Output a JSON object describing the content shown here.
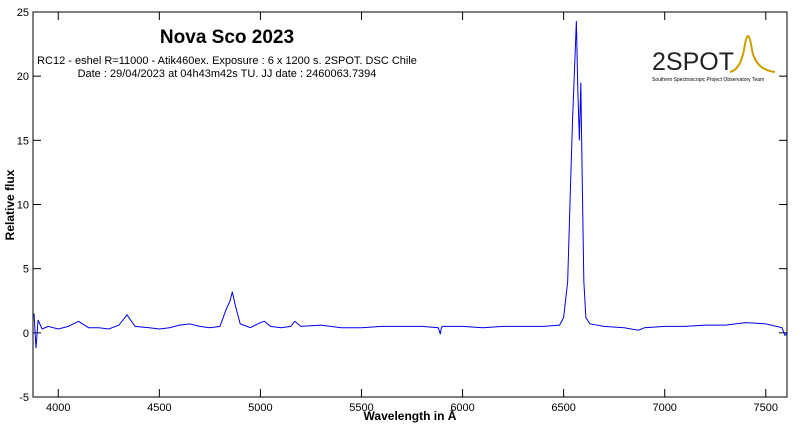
{
  "chart_data": {
    "type": "line",
    "title": "Nova Sco 2023",
    "subtitle": [
      "RC12 - eshel R=11000 - Atik460ex. Exposure : 6 x 1200 s. 2SPOT. DSC Chile",
      "Date : 29/04/2023 at 04h43m42s TU. JJ date : 2460063.7394"
    ],
    "xlabel": "Wavelength in Å",
    "ylabel": "Relative flux",
    "logo": {
      "name": "2SPOT",
      "caption": "Southern Spectroscopic Project Observatory Team"
    },
    "x": [
      3880,
      3890,
      3900,
      3920,
      3950,
      4000,
      4050,
      4100,
      4150,
      4200,
      4250,
      4300,
      4340,
      4380,
      4450,
      4500,
      4550,
      4600,
      4650,
      4700,
      4750,
      4800,
      4830,
      4850,
      4861,
      4875,
      4900,
      4950,
      5000,
      5020,
      5050,
      5100,
      5150,
      5170,
      5200,
      5300,
      5400,
      5500,
      5600,
      5700,
      5800,
      5880,
      5890,
      5895,
      5900,
      6000,
      6100,
      6200,
      6300,
      6400,
      6480,
      6500,
      6520,
      6535,
      6545,
      6555,
      6563,
      6570,
      6578,
      6585,
      6592,
      6600,
      6610,
      6630,
      6700,
      6800,
      6870,
      6900,
      7000,
      7100,
      7200,
      7300,
      7400,
      7500,
      7580,
      7595,
      7605
    ],
    "series": [
      {
        "name": "Nova Sco 2023",
        "color": "#0000ee",
        "values": [
          1.5,
          -1.2,
          1.0,
          0.3,
          0.5,
          0.3,
          0.5,
          0.9,
          0.4,
          0.4,
          0.3,
          0.6,
          1.4,
          0.5,
          0.4,
          0.3,
          0.4,
          0.6,
          0.7,
          0.5,
          0.4,
          0.5,
          1.8,
          2.5,
          3.2,
          2.2,
          0.7,
          0.4,
          0.8,
          0.9,
          0.5,
          0.4,
          0.5,
          0.9,
          0.5,
          0.6,
          0.4,
          0.4,
          0.5,
          0.5,
          0.5,
          0.4,
          -0.1,
          0.4,
          0.5,
          0.5,
          0.4,
          0.5,
          0.5,
          0.5,
          0.6,
          1.2,
          4,
          12,
          17,
          21,
          24.3,
          19,
          15,
          19.5,
          12,
          4,
          1.2,
          0.7,
          0.5,
          0.4,
          0.2,
          0.4,
          0.5,
          0.5,
          0.6,
          0.6,
          0.8,
          0.7,
          0.4,
          -0.2,
          0
        ]
      }
    ],
    "xlim": [
      3875,
      7605
    ],
    "ylim": [
      -5,
      25
    ],
    "xticks": [
      4000,
      4500,
      5000,
      5500,
      6000,
      6500,
      7000,
      7500
    ],
    "yticks": [
      -5,
      0,
      5,
      10,
      15,
      20,
      25
    ]
  }
}
